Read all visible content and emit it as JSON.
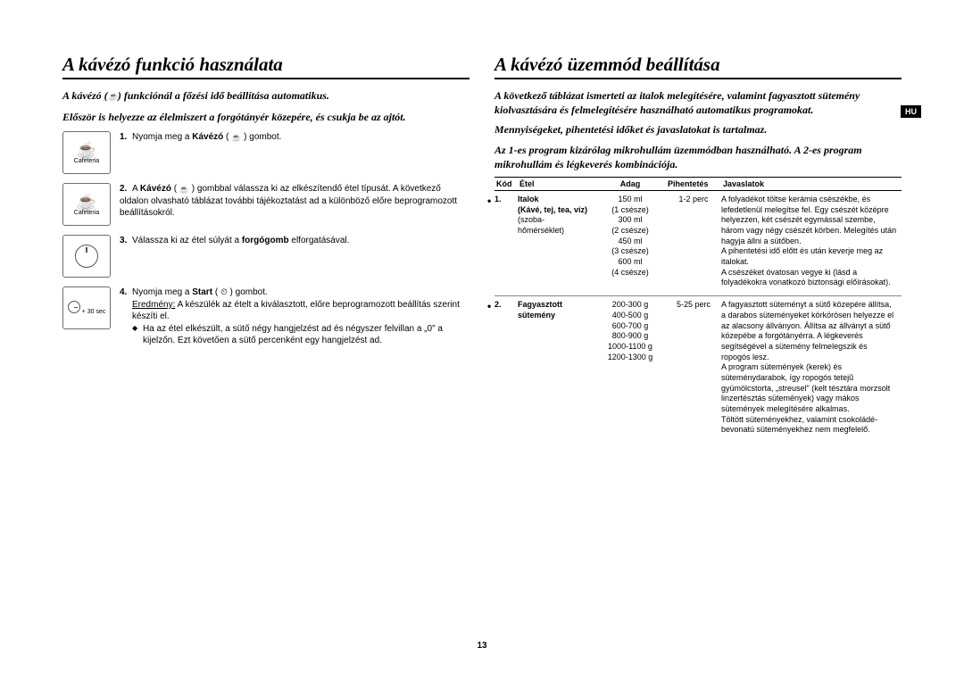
{
  "lang_badge": "HU",
  "page_number": "13",
  "left": {
    "title": "A kávézó funkció használata",
    "intro1_a": "A kávézó (",
    "intro1_b": ") funkciónál a főzési idő beállítása automatikus.",
    "intro2": "Először is helyezze az élelmiszert a forgótányér közepére, és csukja be az ajtót.",
    "step1": {
      "num": "1.",
      "a": "Nyomja meg a ",
      "b": "Kávézó",
      "c": " ( ",
      "d": " ) gombot."
    },
    "cafeteria": "Cafeteria",
    "step2": {
      "num": "2.",
      "a": "A ",
      "b": "Kávézó",
      "c": " ( ",
      "d": " ) gombbal válassza ki az elkészítendő étel típusát. A következő oldalon olvasható táblázat további tájékoztatást ad a különböző előre beprogramozott beállításokról."
    },
    "step3": {
      "num": "3.",
      "a": "Válassza ki az étel súlyát a ",
      "b": "forgógomb",
      "c": " elforgatásával."
    },
    "step4": {
      "num": "4.",
      "a": "Nyomja meg a ",
      "b": "Start",
      "c": " ( ",
      "d": " ) gombot.",
      "result_label": "Eredmény:",
      "result": " A készülék az ételt a kiválasztott, előre beprogramozott beállítás szerint készíti el.",
      "bullet": "Ha az étel elkészült, a sütő négy hangjelzést ad és négyszer felvillan a „0\" a kijelzőn. Ezt követően a sütő percenként egy hangjelzést ad."
    },
    "start_label": "+ 30 sec"
  },
  "right": {
    "title": "A kávézó üzemmód beállítása",
    "intro1": "A következő táblázat ismerteti az italok melegítésére, valamint fagyasztott sütemény kiolvasztására és felmelegítésére használható automatikus programokat.",
    "intro2": "Mennyiségeket, pihentetési időket és javaslatokat is tartalmaz.",
    "intro3": "Az 1-es program kizárólag mikrohullám üzemmódban használható. A 2-es program mikrohullám és légkeverés kombinációja.",
    "headers": {
      "kod": "Kód",
      "etel": "Étel",
      "adag": "Adag",
      "pih": "Pihentetés",
      "jav": "Javaslatok"
    },
    "row1": {
      "kod": "1.",
      "etel_b1": "Italok",
      "etel_b2": "(Kávé, tej, tea, víz)",
      "etel_r": "(szoba-\nhőmérséklet)",
      "adag": "150 ml\n(1 csésze)\n300 ml\n(2 csésze)\n450 ml\n(3 csésze)\n600 ml\n(4 csésze)",
      "pih": "1-2 perc",
      "jav": "A folyadékot töltse kerámia csészékbe, és lefedetlenül melegítse fel. Egy csészét középre helyezzen, két csészét egymással szembe, három vagy négy csészét körben. Melegítés után hagyja állni a sütőben.\nA pihentetési idő előtt és után keverje meg az italokat.\nA csészéket óvatosan vegye ki (lásd a folyadékokra vonatkozó biztonsági előírásokat)."
    },
    "row2": {
      "kod": "2.",
      "etel_b1": "Fagyasztott sütemény",
      "adag": "200-300 g\n400-500 g\n600-700 g\n800-900 g\n1000-1100 g\n1200-1300 g",
      "pih": "5-25 perc",
      "jav": "A fagyasztott süteményt a sütő közepére állítsa, a darabos süteményeket körkörösen helyezze el az alacsony állványon. Állítsa az állványt a sütő közepébe a forgótányérra. A légkeverés segítségével a sütemény felmelegszik és ropogós lesz.\nA program sütemények (kerek) és süteménydarabok, így ropogós tetejű gyümölcstorta, „streusel\" (kelt tésztára morzsolt linzertésztás sütemények) vagy mákos sütemények melegítésére alkalmas.\nTöltött süteményekhez, valamint csokoládé-bevonatú süteményekhez nem megfelelő."
    }
  }
}
